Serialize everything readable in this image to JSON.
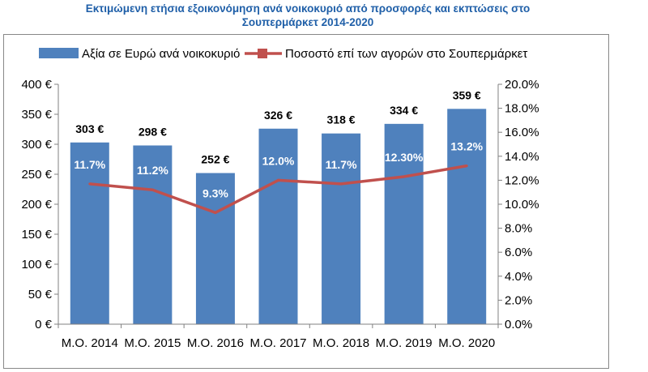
{
  "title_line1": "Εκτιμώμενη ετήσια εξοικονόμηση ανά νοικοκυριό από προσφορές και εκπτώσεις στο",
  "title_line2": "Σουπερμάρκετ 2014-2020",
  "chart_data": {
    "type": "bar",
    "categories": [
      "Μ.Ο. 2014",
      "Μ.Ο. 2015",
      "Μ.Ο. 2016",
      "Μ.Ο. 2017",
      "Μ.Ο. 2018",
      "Μ.Ο. 2019",
      "Μ.Ο. 2020"
    ],
    "series": [
      {
        "name": "Αξία σε Ευρώ ανά νοικοκυριό",
        "type": "bar",
        "axis": "left",
        "values": [
          303,
          298,
          252,
          326,
          318,
          334,
          359
        ],
        "labels": [
          "303 €",
          "298 €",
          "252 €",
          "326 €",
          "318 €",
          "334 €",
          "359 €"
        ],
        "color": "#4f81bd"
      },
      {
        "name": "Ποσοστό επί των αγορών στο Σουπερμάρκετ",
        "type": "line",
        "axis": "right",
        "values": [
          11.7,
          11.2,
          9.3,
          12.0,
          11.7,
          12.3,
          13.2
        ],
        "labels": [
          "11.7%",
          "11.2%",
          "9.3%",
          "12.0%",
          "11.7%",
          "12.30%",
          "13.2%"
        ],
        "color": "#c0504d"
      }
    ],
    "ylim_left": [
      0,
      400
    ],
    "yticks_left": [
      "0 €",
      "50 €",
      "100 €",
      "150 €",
      "200 €",
      "250 €",
      "300 €",
      "350 €",
      "400 €"
    ],
    "ylim_right": [
      0,
      20
    ],
    "yticks_right": [
      "0.0%",
      "2.0%",
      "4.0%",
      "6.0%",
      "8.0%",
      "10.0%",
      "12.0%",
      "14.0%",
      "16.0%",
      "18.0%",
      "20.0%"
    ],
    "legend_position": "top",
    "grid": false
  }
}
